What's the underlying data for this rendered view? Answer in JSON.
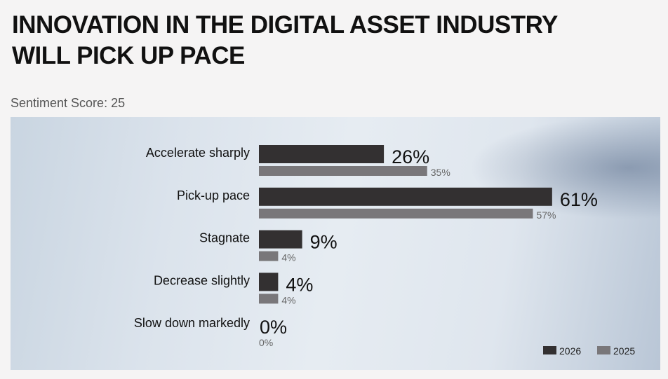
{
  "title_lines": [
    "INNOVATION IN THE DIGITAL ASSET INDUSTRY",
    "WILL PICK UP PACE"
  ],
  "subtitle": "Sentiment Score: 25",
  "chart_data": {
    "type": "bar",
    "orientation": "horizontal",
    "categories": [
      "Accelerate sharply",
      "Pick-up pace",
      "Stagnate",
      "Decrease slightly",
      "Slow down markedly"
    ],
    "series": [
      {
        "name": "2026",
        "values": [
          26,
          61,
          9,
          4,
          0
        ],
        "labels": [
          "26%",
          "61%",
          "9%",
          "4%",
          "0%"
        ],
        "color": "#333031"
      },
      {
        "name": "2025",
        "values": [
          35,
          57,
          4,
          4,
          0
        ],
        "labels": [
          "35%",
          "57%",
          "4%",
          "4%",
          "0%"
        ],
        "color": "#79777a"
      }
    ],
    "unit": "%",
    "xlim": [
      0,
      100
    ],
    "grid": false,
    "legend_position": "bottom-right"
  }
}
